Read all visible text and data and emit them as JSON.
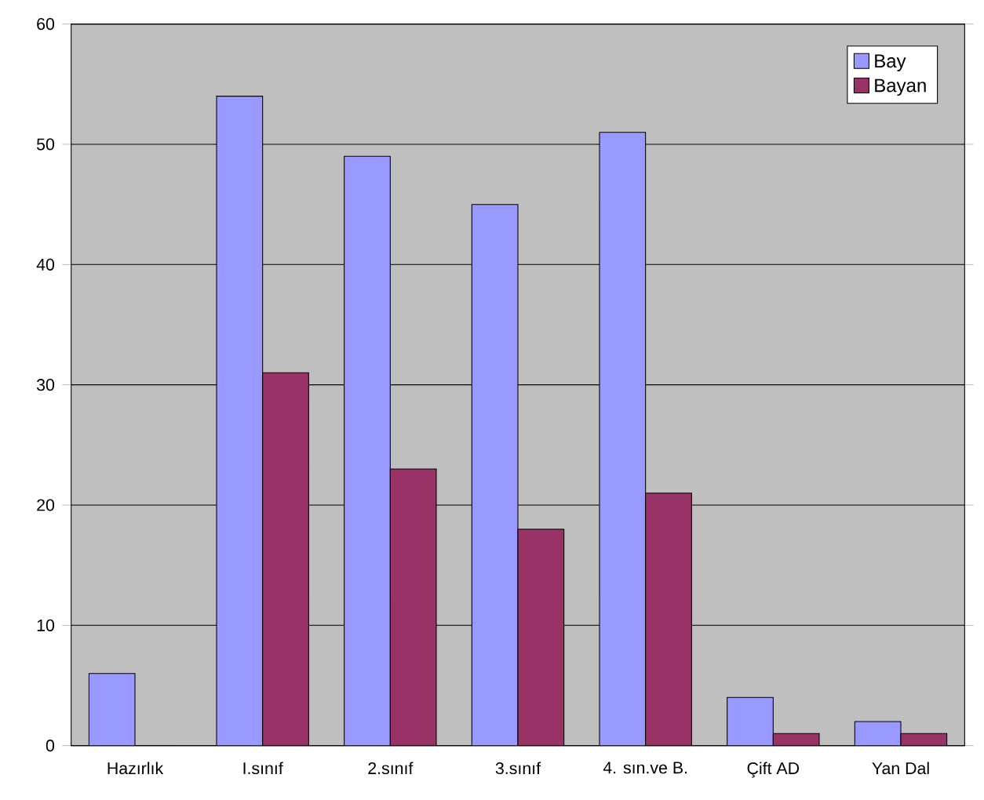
{
  "chart_data": {
    "type": "bar",
    "categories": [
      "Hazırlık",
      "I.sınıf",
      "2.sınıf",
      "3.sınıf",
      "4. sın.ve B.",
      "Çift AD",
      "Yan Dal"
    ],
    "series": [
      {
        "name": "Bay",
        "color": "#9999ff",
        "values": [
          6,
          54,
          49,
          45,
          51,
          4,
          2
        ]
      },
      {
        "name": "Bayan",
        "color": "#993366",
        "values": [
          0,
          31,
          23,
          18,
          21,
          1,
          1
        ]
      }
    ],
    "ylim": [
      0,
      60
    ],
    "yticks": [
      0,
      10,
      20,
      30,
      40,
      50,
      60
    ],
    "grid": "y",
    "legend": "top right"
  }
}
